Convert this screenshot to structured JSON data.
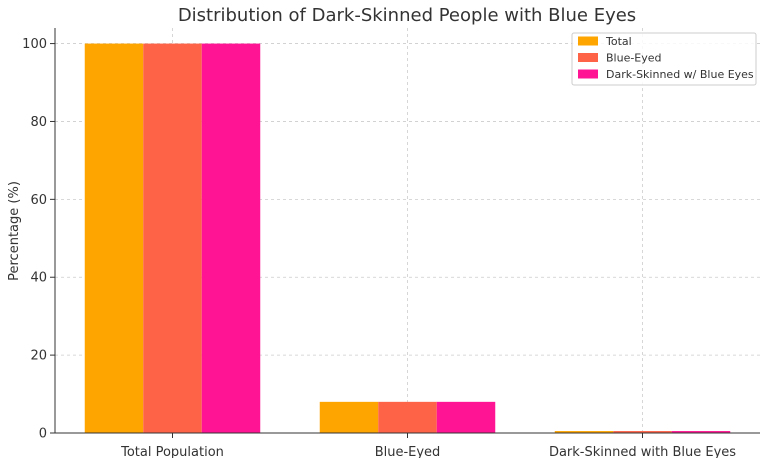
{
  "chart_data": {
    "type": "bar",
    "title": "Distribution of Dark-Skinned People with Blue Eyes",
    "xlabel": "",
    "ylabel": "Percentage (%)",
    "categories": [
      "Total Population",
      "Blue-Eyed",
      "Dark-Skinned with Blue Eyes"
    ],
    "series": [
      {
        "name": "Total",
        "values": [
          100,
          8,
          0.5
        ],
        "color": "#FFA500"
      },
      {
        "name": "Blue-Eyed",
        "values": [
          100,
          8,
          0.5
        ],
        "color": "#FF6347"
      },
      {
        "name": "Dark-Skinned w/ Blue Eyes",
        "values": [
          100,
          8,
          0.5
        ],
        "color": "#FF1493"
      }
    ],
    "ylim": [
      0,
      104
    ],
    "yticks": [
      0,
      20,
      40,
      60,
      80,
      100
    ],
    "grid": true,
    "legend_position": "top-right"
  }
}
